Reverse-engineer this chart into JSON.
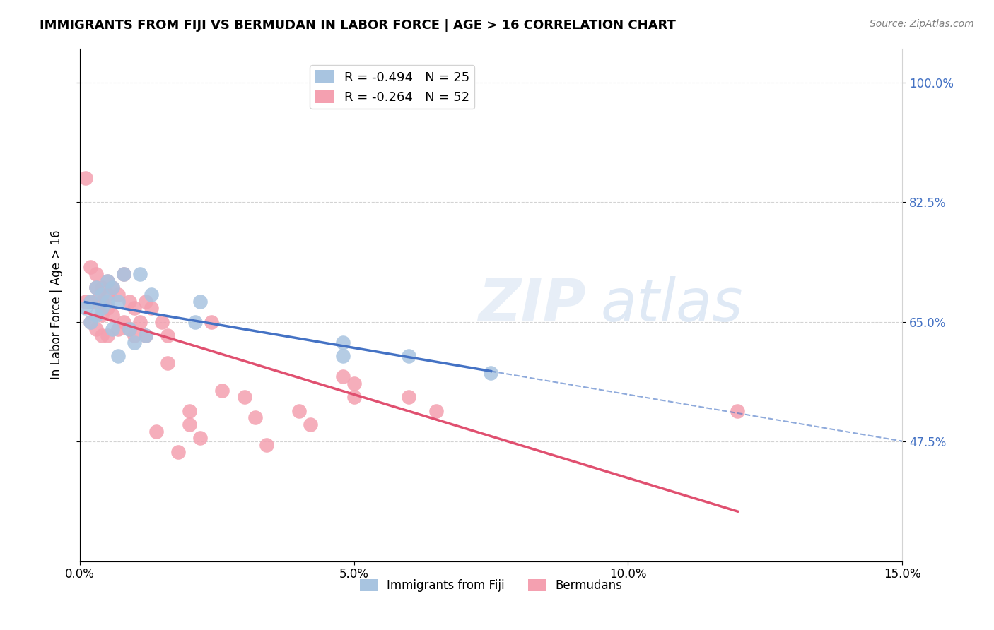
{
  "title": "IMMIGRANTS FROM FIJI VS BERMUDAN IN LABOR FORCE | AGE > 16 CORRELATION CHART",
  "source": "Source: ZipAtlas.com",
  "xlabel": "",
  "ylabel": "In Labor Force | Age > 16",
  "xlim": [
    0.0,
    0.15
  ],
  "ylim": [
    0.3,
    1.05
  ],
  "yticks": [
    0.475,
    0.65,
    0.825,
    1.0
  ],
  "ytick_labels": [
    "47.5%",
    "65.0%",
    "82.5%",
    "100.0%"
  ],
  "xticks": [
    0.0,
    0.05,
    0.1,
    0.15
  ],
  "xtick_labels": [
    "0.0%",
    "5.0%",
    "10.0%",
    "15.0%"
  ],
  "fiji_R": -0.494,
  "fiji_N": 25,
  "bermuda_R": -0.264,
  "bermuda_N": 52,
  "fiji_color": "#a8c4e0",
  "bermuda_color": "#f4a0b0",
  "fiji_line_color": "#4472c4",
  "bermuda_line_color": "#e05070",
  "watermark": "ZIPatlas",
  "fiji_x": [
    0.001,
    0.002,
    0.002,
    0.003,
    0.003,
    0.004,
    0.004,
    0.005,
    0.005,
    0.006,
    0.006,
    0.007,
    0.007,
    0.008,
    0.009,
    0.01,
    0.011,
    0.012,
    0.013,
    0.021,
    0.022,
    0.048,
    0.048,
    0.06,
    0.075
  ],
  "fiji_y": [
    0.67,
    0.68,
    0.65,
    0.7,
    0.66,
    0.69,
    0.67,
    0.68,
    0.71,
    0.7,
    0.64,
    0.68,
    0.6,
    0.72,
    0.64,
    0.62,
    0.72,
    0.63,
    0.69,
    0.65,
    0.68,
    0.62,
    0.6,
    0.6,
    0.575
  ],
  "bermuda_x": [
    0.001,
    0.001,
    0.002,
    0.002,
    0.002,
    0.003,
    0.003,
    0.003,
    0.003,
    0.004,
    0.004,
    0.004,
    0.004,
    0.005,
    0.005,
    0.005,
    0.005,
    0.006,
    0.006,
    0.007,
    0.007,
    0.008,
    0.008,
    0.009,
    0.009,
    0.01,
    0.01,
    0.011,
    0.012,
    0.012,
    0.013,
    0.014,
    0.015,
    0.016,
    0.016,
    0.018,
    0.02,
    0.02,
    0.022,
    0.024,
    0.026,
    0.03,
    0.032,
    0.034,
    0.04,
    0.042,
    0.048,
    0.05,
    0.05,
    0.06,
    0.065,
    0.12
  ],
  "bermuda_y": [
    0.68,
    0.86,
    0.73,
    0.68,
    0.65,
    0.72,
    0.7,
    0.68,
    0.64,
    0.7,
    0.68,
    0.66,
    0.63,
    0.71,
    0.69,
    0.67,
    0.63,
    0.7,
    0.66,
    0.69,
    0.64,
    0.72,
    0.65,
    0.68,
    0.64,
    0.67,
    0.63,
    0.65,
    0.68,
    0.63,
    0.67,
    0.49,
    0.65,
    0.63,
    0.59,
    0.46,
    0.52,
    0.5,
    0.48,
    0.65,
    0.55,
    0.54,
    0.51,
    0.47,
    0.52,
    0.5,
    0.57,
    0.56,
    0.54,
    0.54,
    0.52,
    0.52
  ]
}
